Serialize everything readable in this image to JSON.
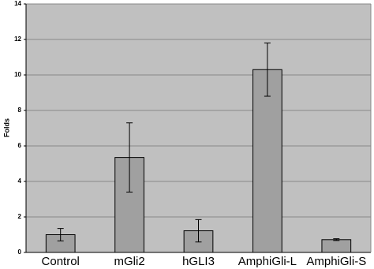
{
  "chart_data": {
    "type": "bar",
    "y_label": "Folds",
    "categories": [
      "Control",
      "mGli2",
      "hGLI3",
      "AmphiGli-L",
      "AmphiGli-S"
    ],
    "values": [
      1.0,
      5.35,
      1.22,
      10.3,
      0.72
    ],
    "errors": [
      0.35,
      1.95,
      0.63,
      1.5,
      0.05
    ],
    "color": "#a0a0a0",
    "background": "#c0c0c0",
    "ylim": [
      0,
      14
    ],
    "yticks": [
      0,
      2,
      4,
      6,
      8,
      10,
      12,
      14
    ],
    "grid": true
  }
}
